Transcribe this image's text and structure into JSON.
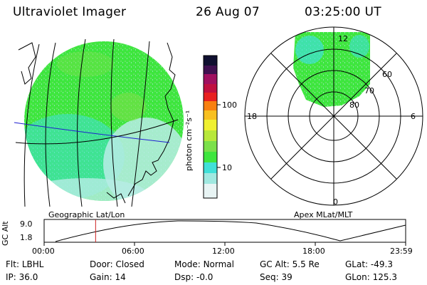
{
  "header": {
    "instrument": "Ultraviolet Imager",
    "date": "26 Aug 07",
    "time": "03:25:00 UT"
  },
  "colorbar": {
    "unit_label": "photon cm⁻²s⁻¹",
    "ticks": [
      "100",
      "10"
    ]
  },
  "polar_plot": {
    "mlt_labels": {
      "top": "12",
      "left": "18",
      "right": "6",
      "bottom": "0"
    },
    "lat_labels": [
      "60",
      "70",
      "80"
    ]
  },
  "panel_labels": {
    "left": "Geographic Lat/Lon",
    "right": "Apex MLat/MLT"
  },
  "altitude_plot": {
    "ylabel": "GC Alt",
    "yticks": [
      "9.0",
      "1.8"
    ],
    "xticks": [
      "00:00",
      "06:00",
      "12:00",
      "18:00",
      "23:59"
    ],
    "current_time_fraction": 0.1424
  },
  "info": {
    "row1": [
      {
        "label": "Flt:",
        "value": "LBHL"
      },
      {
        "label": "Door:",
        "value": "Closed"
      },
      {
        "label": "Mode:",
        "value": "Normal"
      },
      {
        "label": "GC Alt:",
        "value": "5.5 Re"
      },
      {
        "label": "GLat:",
        "value": "-49.3"
      }
    ],
    "row2": [
      {
        "label": "IP:",
        "value": "36.0"
      },
      {
        "label": "Gain:",
        "value": "14"
      },
      {
        "label": "Dsp:",
        "value": "-0.0"
      },
      {
        "label": "Seq:",
        "value": "39"
      },
      {
        "label": "GLon:",
        "value": "125.3"
      }
    ]
  },
  "colors": {
    "aurora_green": "#3ee63e",
    "aurora_cyan": "#40e0d8",
    "aurora_light": "#b8ece6",
    "marker_red": "#cc2020",
    "lon_line_blue": "#2020d0"
  }
}
